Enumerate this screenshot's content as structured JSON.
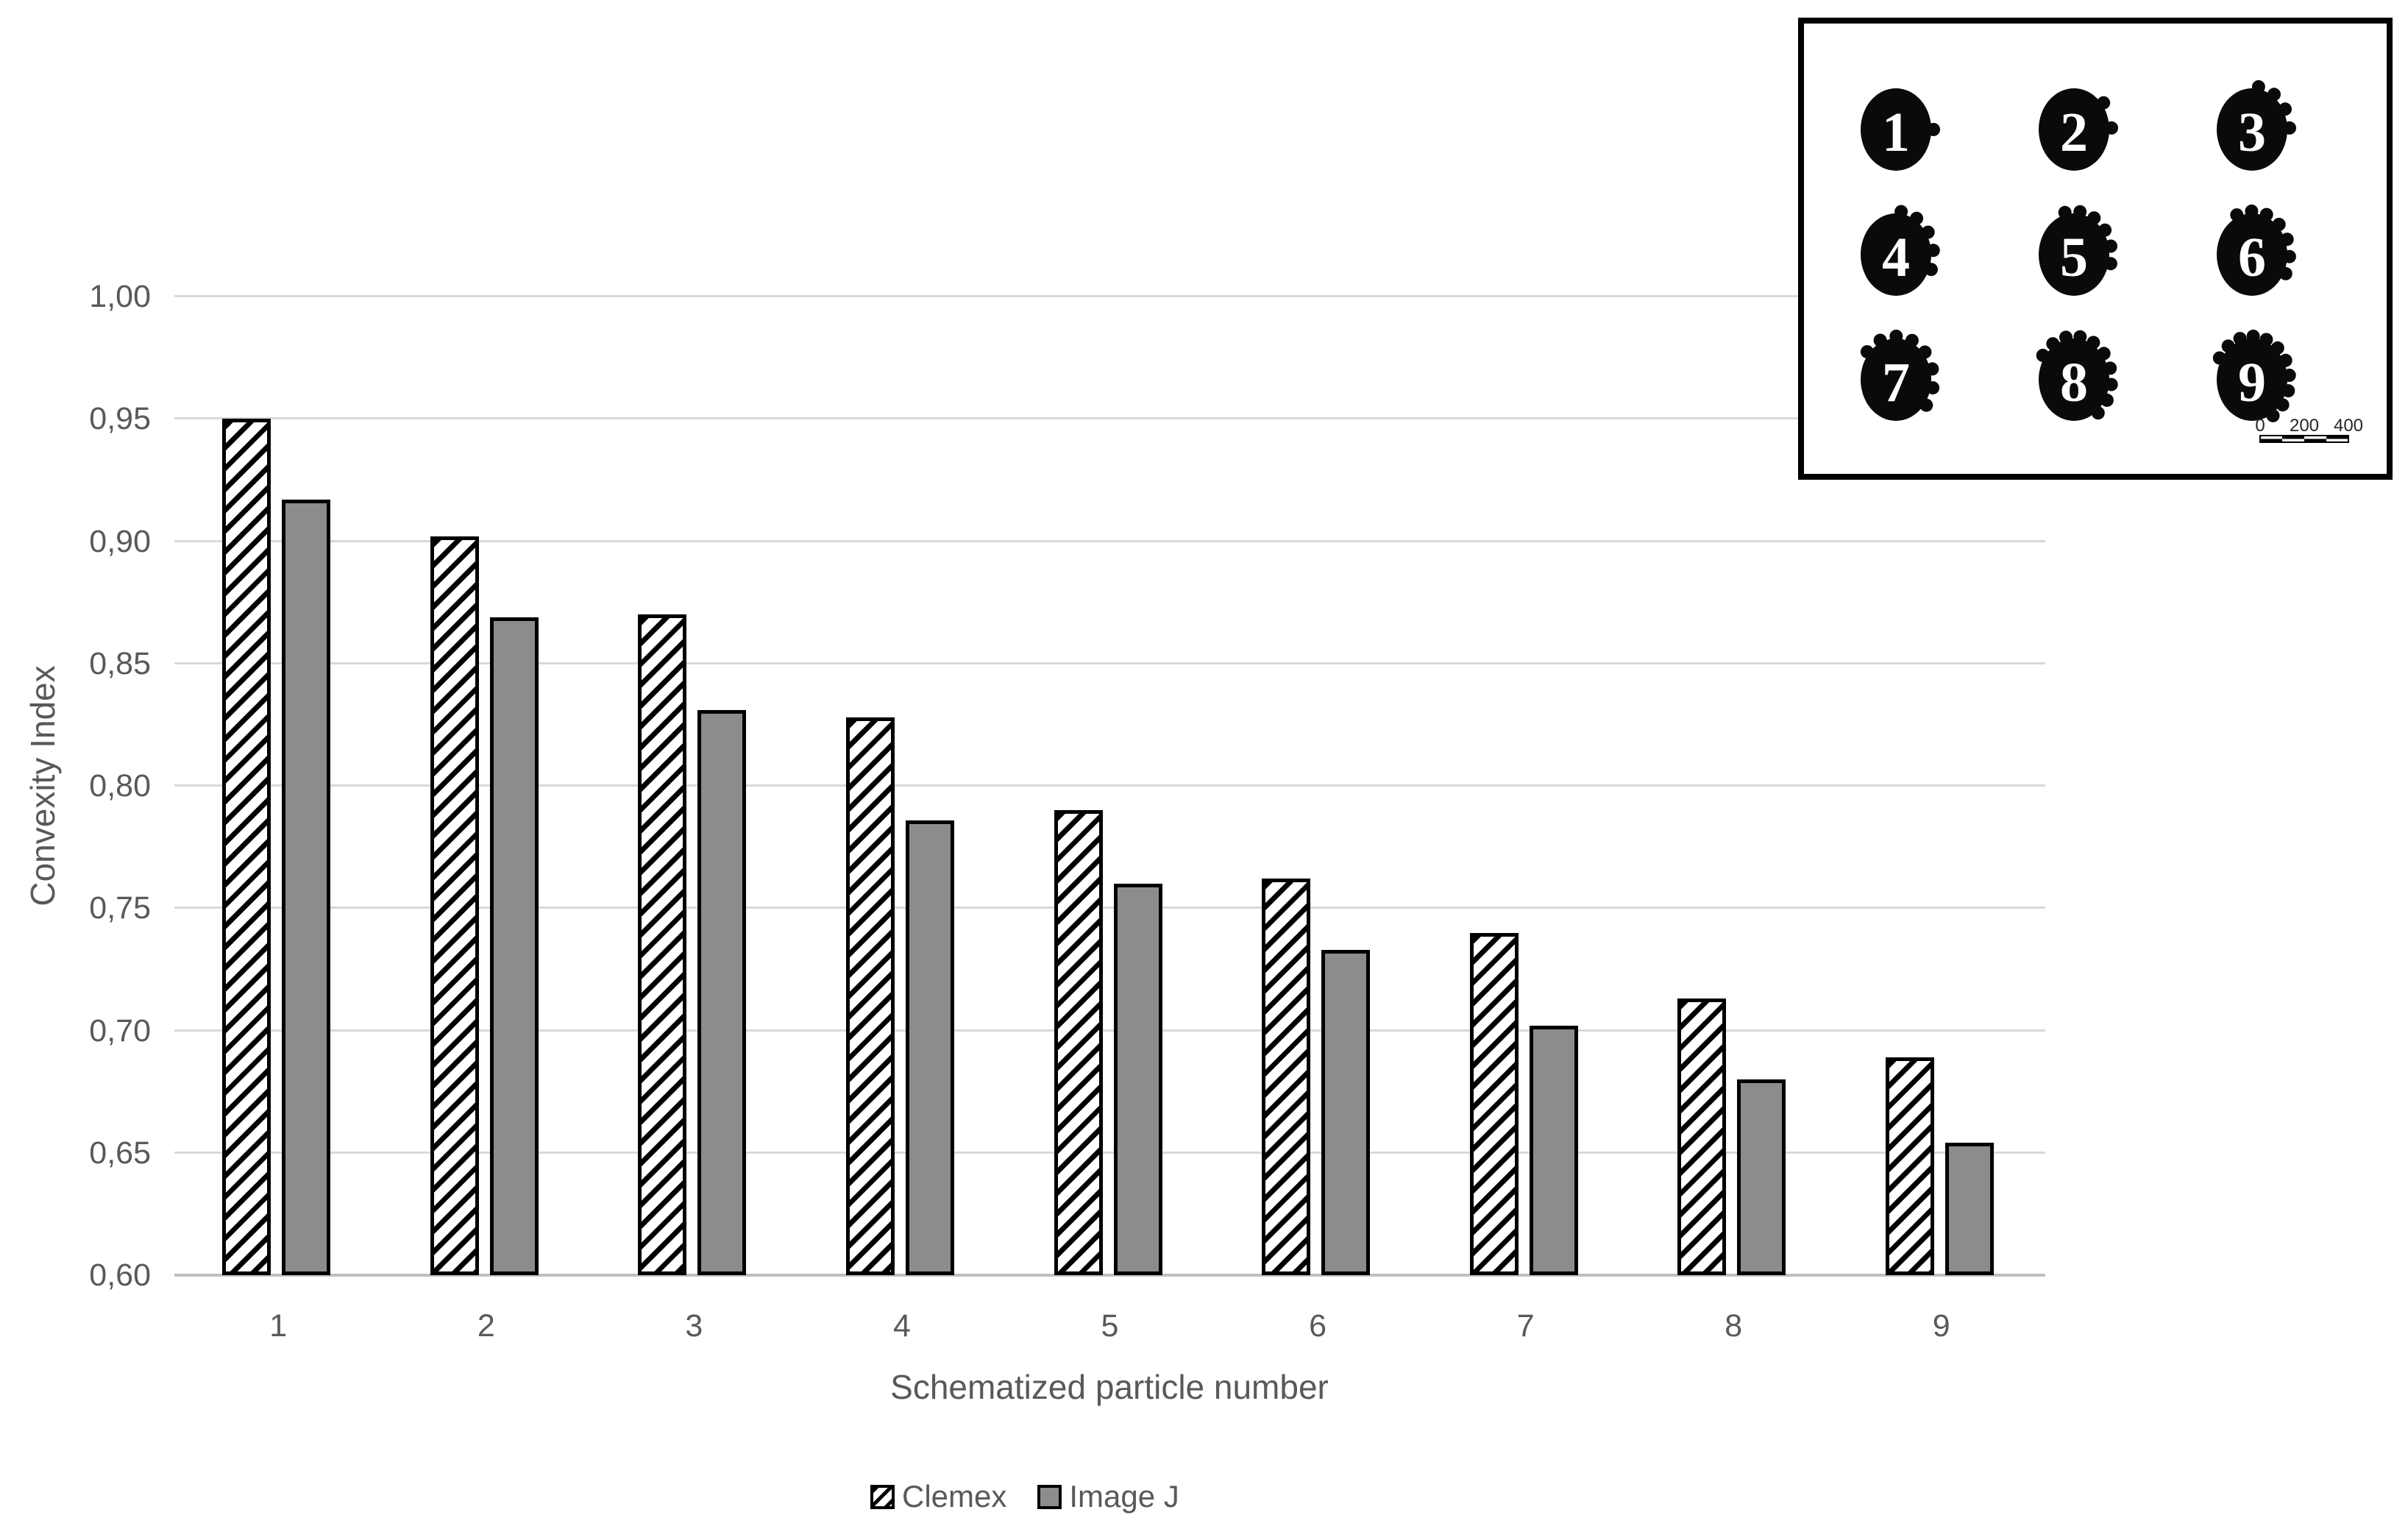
{
  "chart_data": {
    "type": "bar",
    "title": "",
    "categories": [
      "1",
      "2",
      "3",
      "4",
      "5",
      "6",
      "7",
      "8",
      "9"
    ],
    "series": [
      {
        "name": "Clemex",
        "fill": "hatched",
        "values": [
          0.95,
          0.902,
          0.87,
          0.828,
          0.79,
          0.762,
          0.74,
          0.713,
          0.689
        ]
      },
      {
        "name": "Image J",
        "fill": "#8C8C8C",
        "values": [
          0.917,
          0.869,
          0.831,
          0.786,
          0.76,
          0.733,
          0.702,
          0.68,
          0.654
        ]
      }
    ],
    "xlabel": "Schematized particle number",
    "ylabel": "Convexity Index",
    "ylim": [
      0.6,
      1.0
    ],
    "ytick_step": 0.05,
    "ytick_labels": [
      "1,00",
      "0,95",
      "0,90",
      "0,85",
      "0,80",
      "0,75",
      "0,70",
      "0,65",
      "0,60"
    ],
    "decimal_separator": ",",
    "grid": true,
    "legend_position": "bottom-center"
  },
  "inset": {
    "description": "schematized-particles-diagram",
    "particles": [
      {
        "label": "1",
        "bumps": 1,
        "arc_start": 0,
        "arc_end": 0
      },
      {
        "label": "2",
        "bumps": 2,
        "arc_start": 38,
        "arc_end": 2
      },
      {
        "label": "3",
        "bumps": 4,
        "arc_start": 80,
        "arc_end": 2
      },
      {
        "label": "4",
        "bumps": 5,
        "arc_start": 82,
        "arc_end": -20
      },
      {
        "label": "5",
        "bumps": 6,
        "arc_start": 104,
        "arc_end": -12
      },
      {
        "label": "6",
        "bumps": 7,
        "arc_start": 114,
        "arc_end": -26
      },
      {
        "label": "7",
        "bumps": 8,
        "arc_start": 140,
        "arc_end": -36
      },
      {
        "label": "8",
        "bumps": 10,
        "arc_start": 146,
        "arc_end": -50
      },
      {
        "label": "9",
        "bumps": 11,
        "arc_start": 150,
        "arc_end": -56
      }
    ],
    "scale_bar": {
      "labels": [
        "0",
        "200",
        "400"
      ]
    }
  },
  "colors": {
    "background": "#FFFFFF",
    "gridline": "#D9D9D9",
    "axis_line": "#BFBFBF",
    "text": "#595959",
    "bar_border": "#000000",
    "imagej_fill": "#8C8C8C",
    "particle_fill": "#0A0A0A",
    "particle_number": "#FFFFFF"
  }
}
